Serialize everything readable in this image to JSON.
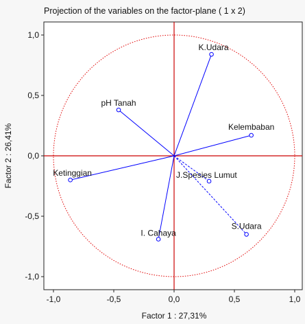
{
  "chart_data": {
    "type": "scatter",
    "title": "Projection of the variables on the factor-plane (  1 x   2)",
    "xlabel": "Factor 1 : 27,31%",
    "ylabel": "Factor 2 : 26,41%",
    "xlim": [
      -1.0,
      1.0
    ],
    "ylim": [
      -1.0,
      1.0
    ],
    "x_ticks": [
      "-1,0",
      "-0,5",
      "0,0",
      "0,5",
      "1,0"
    ],
    "y_ticks": [
      "1,0",
      "0,5",
      "0,0",
      "-0,5",
      "-1,0"
    ],
    "unit_circle": true,
    "colors": {
      "vector": "#0000ff",
      "circle": "#e00000",
      "center_lines": "#cc0000",
      "point_fill": "#ffffff"
    },
    "points": [
      {
        "name": "K.Udara",
        "x": 0.31,
        "y": 0.84,
        "style": "solid"
      },
      {
        "name": "pH Tanah",
        "x": -0.46,
        "y": 0.38,
        "style": "solid"
      },
      {
        "name": "Kelembaban",
        "x": 0.64,
        "y": 0.17,
        "style": "solid"
      },
      {
        "name": "Ketinggian",
        "x": -0.86,
        "y": -0.2,
        "style": "solid"
      },
      {
        "name": "J.Spesies Lumut",
        "x": 0.29,
        "y": -0.21,
        "style": "dashed"
      },
      {
        "name": "S.Udara",
        "x": 0.6,
        "y": -0.65,
        "style": "dashed"
      },
      {
        "name": "I. Cahaya",
        "x": -0.13,
        "y": -0.69,
        "style": "solid"
      }
    ]
  }
}
